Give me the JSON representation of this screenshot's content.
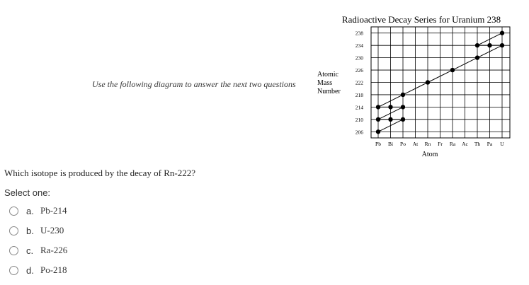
{
  "instruction": "Use the following diagram to answer the next two questions",
  "diagram": {
    "type": "scatter",
    "title": "Radioactive Decay Series for Uranium 238",
    "y_label": [
      "Atomic",
      "Mass",
      "Number"
    ],
    "x_label": "Atom",
    "categories": [
      "Pb",
      "Bi",
      "Po",
      "At",
      "Rn",
      "Fr",
      "Ra",
      "Ac",
      "Th",
      "Pa",
      "U"
    ],
    "ylim": [
      204,
      240
    ],
    "yticks": [
      238,
      234,
      230,
      226,
      222,
      218,
      214,
      210,
      206
    ],
    "grid": true,
    "x": [
      "U",
      "Th",
      "Pa",
      "U",
      "Th",
      "Ra",
      "Rn",
      "Po",
      "Pb",
      "Bi",
      "Po",
      "Pb",
      "Bi",
      "Po",
      "Pb"
    ],
    "values": [
      238,
      234,
      234,
      234,
      230,
      226,
      222,
      218,
      214,
      214,
      214,
      210,
      210,
      210,
      206
    ],
    "color": "#000000"
  },
  "question": "Which isotope is produced by the decay of Rn-222?",
  "prompt": "Select one:",
  "options": [
    {
      "letter": "a.",
      "text": "Pb-214"
    },
    {
      "letter": "b.",
      "text": "U-230"
    },
    {
      "letter": "c.",
      "text": "Ra-226"
    },
    {
      "letter": "d.",
      "text": "Po-218"
    }
  ]
}
